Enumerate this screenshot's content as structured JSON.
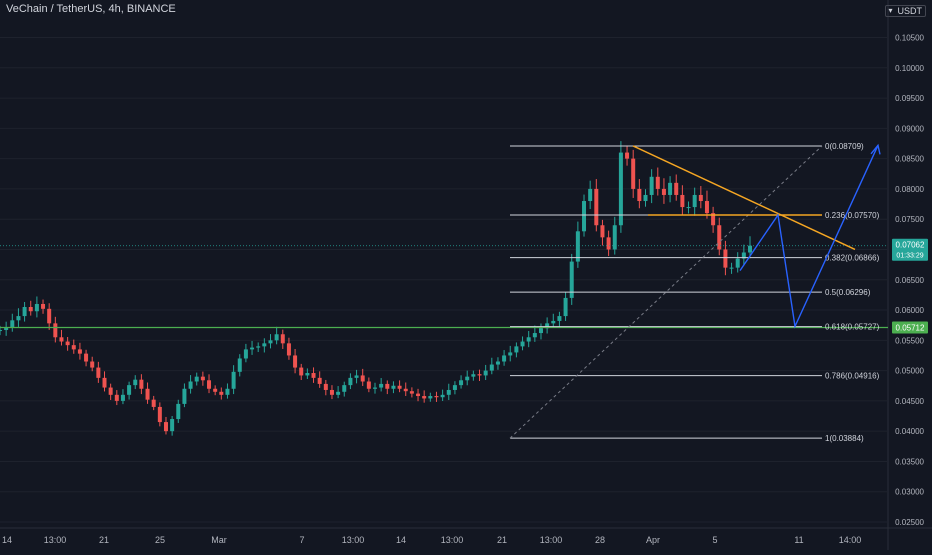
{
  "header": {
    "title": "VeChain / TetherUS, 4h, BINANCE",
    "currency": "USDT"
  },
  "price_tag": {
    "price": "0.07062",
    "countdown": "01:33:29"
  },
  "support_tag": "0.05712",
  "colors": {
    "bg": "#131722",
    "up": "#26a69a",
    "down": "#ef5350",
    "grid": "#1e222d",
    "fib": "#d1d4dc",
    "trend": "#f5a623",
    "projection": "#2962ff",
    "support": "#4caf50",
    "price": "#26a69a"
  },
  "chart_data": {
    "type": "candlestick",
    "symbol": "VeChain / TetherUS",
    "interval": "4h",
    "exchange": "BINANCE",
    "ylim": [
      0.0245,
      0.1095
    ],
    "y_ticks": [
      "0.10500",
      "0.10000",
      "0.09500",
      "0.09000",
      "0.08500",
      "0.08000",
      "0.07500",
      "0.07000",
      "0.06500",
      "0.06000",
      "0.05500",
      "0.05000",
      "0.04500",
      "0.04000",
      "0.03500",
      "0.03000",
      "0.02500"
    ],
    "x_ticks": [
      "14",
      "13:00",
      "21",
      "25",
      "Mar",
      "7",
      "13:00",
      "14",
      "13:00",
      "21",
      "13:00",
      "28",
      "Apr",
      "5",
      "11",
      "14:00"
    ],
    "candles_approx": [
      0.0567,
      0.0572,
      0.0583,
      0.059,
      0.0605,
      0.0598,
      0.061,
      0.0602,
      0.0578,
      0.0555,
      0.0548,
      0.0542,
      0.0535,
      0.0528,
      0.0515,
      0.0505,
      0.0488,
      0.0472,
      0.046,
      0.045,
      0.046,
      0.0476,
      0.0485,
      0.047,
      0.0452,
      0.044,
      0.0415,
      0.04,
      0.042,
      0.0445,
      0.047,
      0.0482,
      0.049,
      0.0484,
      0.047,
      0.0465,
      0.046,
      0.047,
      0.0498,
      0.052,
      0.0535,
      0.0538,
      0.054,
      0.0545,
      0.055,
      0.056,
      0.0545,
      0.0525,
      0.0505,
      0.0492,
      0.0496,
      0.0488,
      0.0478,
      0.0468,
      0.046,
      0.0465,
      0.0476,
      0.0488,
      0.0492,
      0.0482,
      0.047,
      0.0472,
      0.0478,
      0.047,
      0.0475,
      0.047,
      0.0466,
      0.0462,
      0.0458,
      0.0454,
      0.0458,
      0.0456,
      0.046,
      0.0468,
      0.0476,
      0.0484,
      0.049,
      0.0494,
      0.0492,
      0.05,
      0.051,
      0.0515,
      0.0525,
      0.053,
      0.054,
      0.0548,
      0.0555,
      0.0562,
      0.057,
      0.0578,
      0.0582,
      0.059,
      0.062,
      0.068,
      0.073,
      0.078,
      0.08,
      0.074,
      0.072,
      0.07,
      0.074,
      0.086,
      0.085,
      0.08,
      0.078,
      0.079,
      0.082,
      0.08,
      0.079,
      0.081,
      0.079,
      0.077,
      0.077,
      0.079,
      0.078,
      0.076,
      0.074,
      0.07,
      0.067,
      0.067,
      0.0685,
      0.0695,
      0.07062
    ],
    "fib_levels": [
      {
        "label": "0(0.08709)",
        "value": 0.08709
      },
      {
        "label": "0.236(0.07570)",
        "value": 0.0757
      },
      {
        "label": "0.382(0.06866)",
        "value": 0.06866
      },
      {
        "label": "0.5(0.06296)",
        "value": 0.06296
      },
      {
        "label": "0.618(0.05727)",
        "value": 0.05727
      },
      {
        "label": "0.786(0.04916)",
        "value": 0.04916
      },
      {
        "label": "1(0.03884)",
        "value": 0.03884
      }
    ],
    "support_line": 0.05712,
    "current_price": 0.07062
  }
}
